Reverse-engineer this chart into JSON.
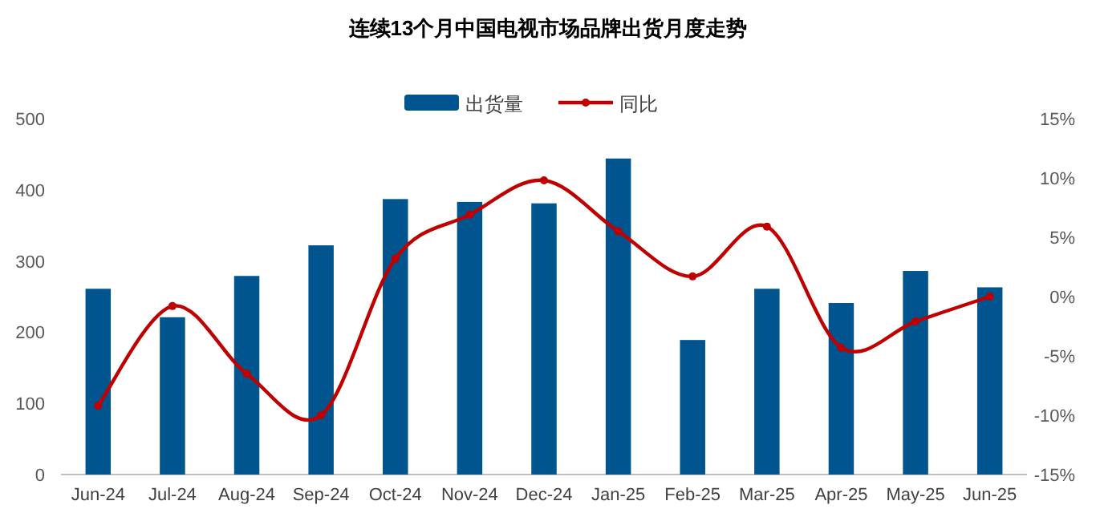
{
  "chart_data": {
    "type": "bar",
    "title": "连续13个月中国电视市场品牌出货月度走势",
    "categories": [
      "Jun-24",
      "Jul-24",
      "Aug-24",
      "Sep-24",
      "Oct-24",
      "Nov-24",
      "Dec-24",
      "Jan-25",
      "Feb-25",
      "Mar-25",
      "Apr-25",
      "May-25",
      "Jun-25"
    ],
    "series": [
      {
        "name": "出货量",
        "color": "#00558f",
        "values": [
          261,
          221,
          279,
          322,
          387,
          383,
          381,
          444,
          189,
          261,
          241,
          286,
          263
        ]
      },
      {
        "name": "同比",
        "type": "line",
        "axis": "y2",
        "color": "#c00000",
        "marker": "circle",
        "values": [
          -9.2,
          -0.8,
          -6.5,
          -10.0,
          3.2,
          6.9,
          9.8,
          5.5,
          1.7,
          5.9,
          -4.3,
          -2.1,
          0
        ]
      }
    ],
    "ylim": [
      0,
      500
    ],
    "yticks": [
      0,
      100,
      200,
      300,
      400,
      500
    ],
    "y2lim": [
      -15,
      15
    ],
    "y2ticks": [
      {
        "value": -15,
        "label": "-15%"
      },
      {
        "value": -10,
        "label": "-10%"
      },
      {
        "value": -5,
        "label": "-5%"
      },
      {
        "value": 0,
        "label": "0%"
      },
      {
        "value": 5,
        "label": "5%"
      },
      {
        "value": 10,
        "label": "10%"
      },
      {
        "value": 15,
        "label": "15%"
      }
    ],
    "legend": "top",
    "grid": false
  }
}
